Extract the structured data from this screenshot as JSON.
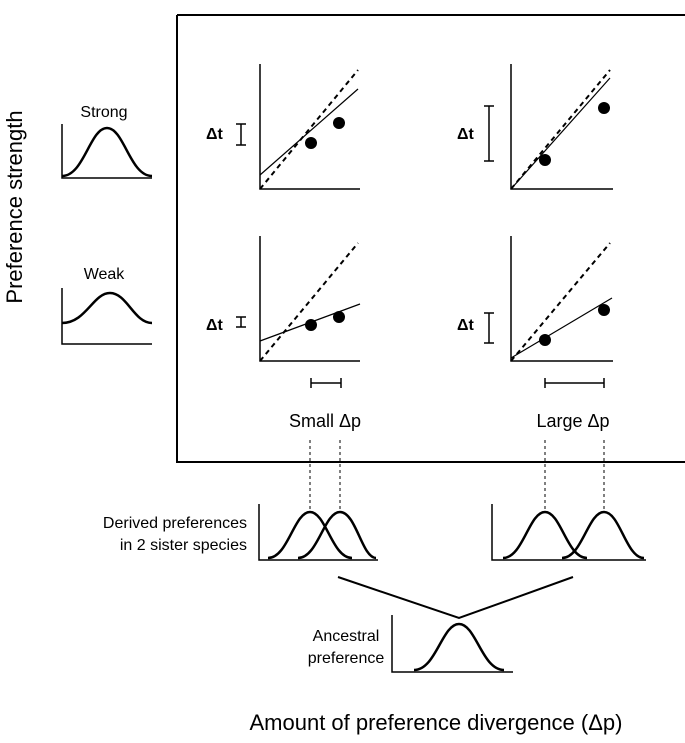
{
  "y_axis_label": "Preference strength",
  "x_axis_label": "Amount of preference divergence (Δp)",
  "strengths": {
    "strong": "Strong",
    "weak": "Weak"
  },
  "delta_t": "Δt",
  "divergence": {
    "small": "Small Δp",
    "large": "Large Δp"
  },
  "derived_label": [
    "Derived preferences",
    "in 2 sister species"
  ],
  "ancestral_label": [
    "Ancestral",
    "preference"
  ],
  "colors": {
    "ink": "#000000",
    "background": "#ffffff"
  }
}
